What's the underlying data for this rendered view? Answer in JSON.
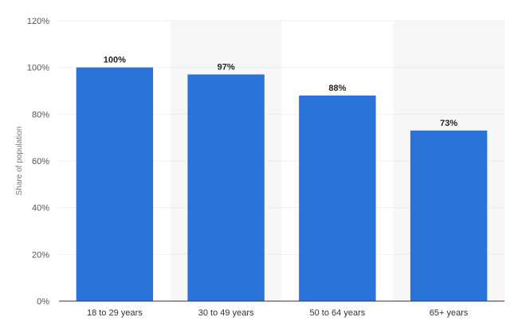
{
  "chart_data": {
    "type": "bar",
    "categories": [
      "18 to 29 years",
      "30 to 49 years",
      "50 to 64 years",
      "65+ years"
    ],
    "values": [
      100,
      97,
      88,
      73
    ],
    "value_labels": [
      "100%",
      "97%",
      "88%",
      "73%"
    ],
    "ylabel": "Share of population",
    "ylim": [
      0,
      120
    ],
    "yticks": [
      0,
      20,
      40,
      60,
      80,
      100,
      120
    ],
    "ytick_labels": [
      "0%",
      "20%",
      "40%",
      "60%",
      "80%",
      "100%",
      "120%"
    ],
    "grid": true,
    "bar_color": "#2a74d9",
    "band_color": "#f7f7f7"
  }
}
